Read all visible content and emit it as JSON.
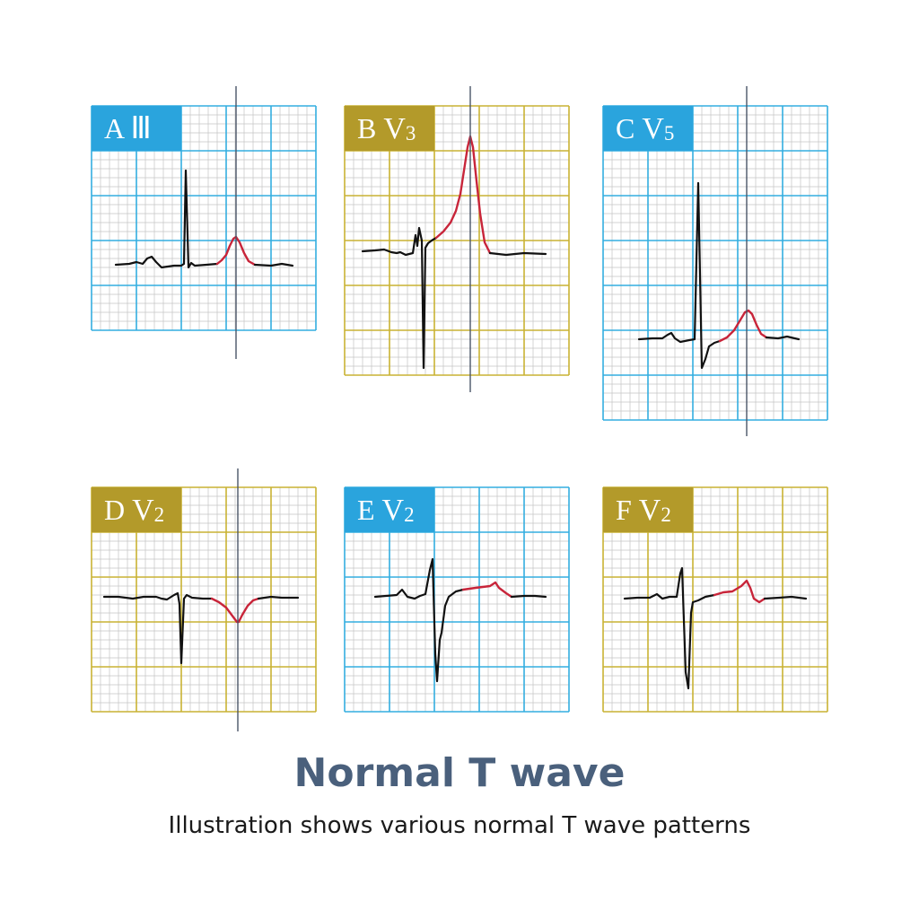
{
  "colors": {
    "blue_grid": "#33aee0",
    "blue_label": "#2aa4dd",
    "gold_grid": "#c9b233",
    "gold_label": "#b39a2a",
    "minor_grid": "#c4c4c4",
    "trace": "#111111",
    "t_wave": "#c8253a",
    "marker_line": "#4a5568"
  },
  "panels": [
    {
      "id": "A",
      "letter": "A",
      "lead": "Ⅲ",
      "sub": "",
      "theme": "blue",
      "t_wave_shape": "upright"
    },
    {
      "id": "B",
      "letter": "B",
      "lead": "V",
      "sub": "3",
      "theme": "gold",
      "t_wave_shape": "tall-upright"
    },
    {
      "id": "C",
      "letter": "C",
      "lead": "V",
      "sub": "5",
      "theme": "blue",
      "t_wave_shape": "upright"
    },
    {
      "id": "D",
      "letter": "D",
      "lead": "V",
      "sub": "2",
      "theme": "gold",
      "t_wave_shape": "inverted"
    },
    {
      "id": "E",
      "letter": "E",
      "lead": "V",
      "sub": "2",
      "theme": "blue",
      "t_wave_shape": "flat-bifid"
    },
    {
      "id": "F",
      "letter": "F",
      "lead": "V",
      "sub": "2",
      "theme": "gold",
      "t_wave_shape": "flat-bifid"
    }
  ],
  "title": "Normal T wave",
  "subtitle": "Illustration shows various normal T wave patterns"
}
